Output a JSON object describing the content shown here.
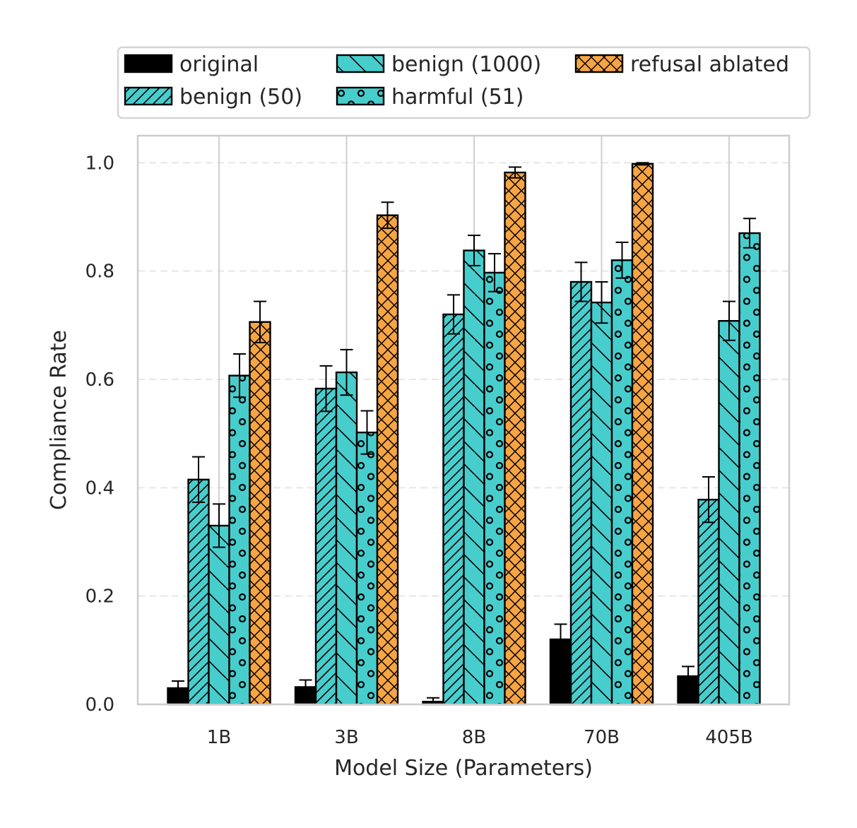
{
  "chart_data": {
    "type": "bar",
    "title": "",
    "xlabel": "Model Size (Parameters)",
    "ylabel": "Compliance Rate",
    "ylim": [
      0,
      1.05
    ],
    "yticks": [
      0.0,
      0.2,
      0.4,
      0.6,
      0.8,
      1.0
    ],
    "ytick_labels": [
      "0.0",
      "0.2",
      "0.4",
      "0.6",
      "0.8",
      "1.0"
    ],
    "grid": true,
    "legend_position": "top",
    "categories": [
      "1B",
      "3B",
      "8B",
      "70B",
      "405B"
    ],
    "series": [
      {
        "name": "original",
        "color": "#000000",
        "pattern": "solid",
        "values": [
          0.03,
          0.032,
          0.005,
          0.12,
          0.052
        ],
        "errors": [
          0.013,
          0.013,
          0.007,
          0.028,
          0.018
        ]
      },
      {
        "name": "benign (50)",
        "color": "#48cdcd",
        "pattern": "diagonal",
        "values": [
          0.415,
          0.583,
          0.72,
          0.78,
          0.378
        ],
        "errors": [
          0.042,
          0.042,
          0.036,
          0.036,
          0.042
        ]
      },
      {
        "name": "benign (1000)",
        "color": "#48cdcd",
        "pattern": "backslash",
        "values": [
          0.33,
          0.613,
          0.838,
          0.742,
          0.708
        ],
        "errors": [
          0.04,
          0.042,
          0.028,
          0.038,
          0.036
        ]
      },
      {
        "name": "harmful (51)",
        "color": "#48cdcd",
        "pattern": "circles",
        "values": [
          0.607,
          0.502,
          0.797,
          0.82,
          0.87
        ],
        "errors": [
          0.04,
          0.04,
          0.035,
          0.033,
          0.027
        ]
      },
      {
        "name": "refusal ablated",
        "color": "#f7a543",
        "pattern": "crosshatch",
        "values": [
          0.706,
          0.903,
          0.982,
          0.998,
          null
        ],
        "errors": [
          0.038,
          0.024,
          0.01,
          0.002,
          null
        ]
      }
    ]
  }
}
